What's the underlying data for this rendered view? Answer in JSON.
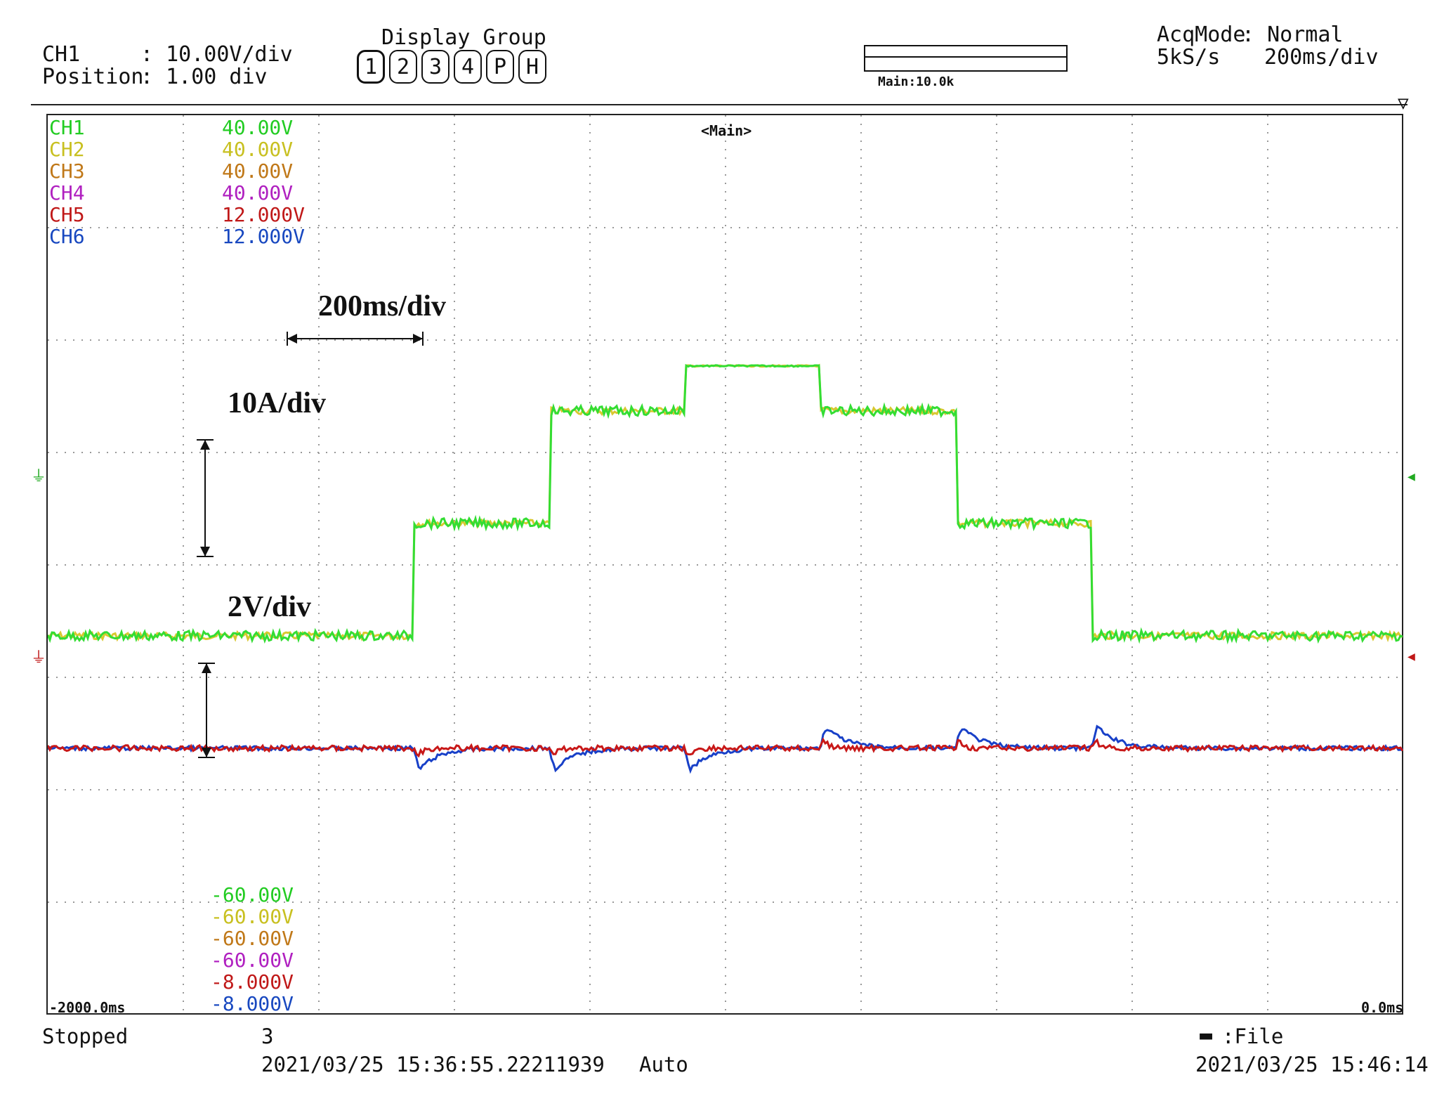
{
  "header": {
    "ch_line1_label": "CH1",
    "ch_line1_value": ": 10.00V/div",
    "ch_line2_label": "Position",
    "ch_line2_value": ": 1.00 div",
    "display_group_title": "Display Group",
    "display_group_buttons": [
      "1",
      "2",
      "3",
      "4",
      "P",
      "H"
    ],
    "display_group_active": "1",
    "zoom_label": "Main:10.0k",
    "acqmode_label": "AcqMode",
    "acqmode_value": ": Normal",
    "sample_rate": "5kS/s",
    "timebase": "200ms/div"
  },
  "screen": {
    "main_tag": "<Main>",
    "time_left": "-2000.0ms",
    "time_right": "0.0ms",
    "channels_top": [
      {
        "name": "CH1",
        "scale": "40.00V",
        "color": "#22cc22"
      },
      {
        "name": "CH2",
        "scale": "40.00V",
        "color": "#c8c020"
      },
      {
        "name": "CH3",
        "scale": "40.00V",
        "color": "#c07818"
      },
      {
        "name": "CH4",
        "scale": "40.00V",
        "color": "#b020c0"
      },
      {
        "name": "CH5",
        "scale": "12.000V",
        "color": "#c01818"
      },
      {
        "name": "CH6",
        "scale": "12.000V",
        "color": "#1848c0"
      }
    ],
    "channels_bottom": [
      {
        "scale": "-60.00V",
        "color": "#22cc22"
      },
      {
        "scale": "-60.00V",
        "color": "#c8c020"
      },
      {
        "scale": "-60.00V",
        "color": "#c07818"
      },
      {
        "scale": "-60.00V",
        "color": "#b020c0"
      },
      {
        "scale": "-8.000V",
        "color": "#c01818"
      },
      {
        "scale": "-8.000V",
        "color": "#1848c0"
      }
    ]
  },
  "annotations": {
    "time_scale": "200ms/div",
    "current_scale": "10A/div",
    "voltage_scale": "2V/div"
  },
  "footer": {
    "status": "Stopped",
    "count": "3",
    "trigger_time": "2021/03/25 15:36:55.22211939",
    "trigger_mode": "Auto",
    "save_target": ":File",
    "current_time": "2021/03/25 15:46:14"
  },
  "colors": {
    "current_trace": "#33dd33",
    "current_trace_2": "#d8c830",
    "voltage_trace_1": "#c81818",
    "voltage_trace_2": "#1840c8",
    "grid": "#999999"
  },
  "waveforms": {
    "x_unit": "div",
    "current_levels_A": [
      0,
      10,
      20,
      24,
      20,
      10,
      0
    ],
    "current_step_times_div": [
      -7.3,
      -6.3,
      -5.3,
      -4.3,
      -3.3,
      -2.3
    ],
    "voltage_dip_times_div": [
      -7.3,
      -6.3,
      -5.3
    ],
    "voltage_spike_times_div": [
      -4.3,
      -3.3,
      -2.3
    ]
  }
}
